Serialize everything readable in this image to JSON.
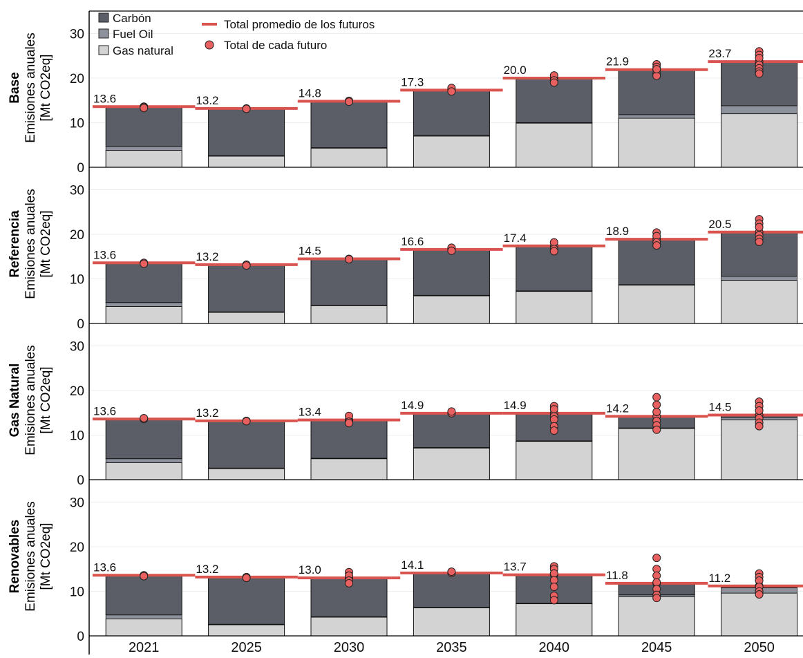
{
  "chart_data": {
    "type": "bar",
    "stacked": true,
    "categories": [
      "2021",
      "2025",
      "2030",
      "2035",
      "2040",
      "2045",
      "2050"
    ],
    "ylim": [
      0,
      35
    ],
    "yticks": [
      0,
      10,
      20,
      30
    ],
    "ylabel_line1": "Emisiones anuales",
    "ylabel_line2": "[Mt CO2eq]",
    "legend": {
      "position": "top-left",
      "items": [
        {
          "label": "Carbón",
          "kind": "box",
          "color": "#5b5e66"
        },
        {
          "label": "Fuel Oil",
          "kind": "box",
          "color": "#8d919b"
        },
        {
          "label": "Gas natural",
          "kind": "box",
          "color": "#d3d3d3"
        },
        {
          "label": "Total promedio de los futuros",
          "kind": "line",
          "color": "#d9534f"
        },
        {
          "label": "Total de cada futuro",
          "kind": "dot",
          "color": "#e8605f"
        }
      ]
    },
    "colors": {
      "carbon": "#5b5e66",
      "fuel_oil": "#8d919b",
      "gas_natural": "#d3d3d3",
      "mean_line": "#d9534f",
      "future_dot": "#e8605f",
      "bar_edge": "#111111"
    },
    "panels": [
      {
        "name": "Base",
        "gas_natural": [
          3.8,
          2.5,
          4.3,
          7.0,
          9.9,
          11.0,
          12.0
        ],
        "fuel_oil": [
          0.9,
          0.1,
          0.1,
          0.1,
          0.1,
          0.8,
          1.8
        ],
        "carbon": [
          8.9,
          10.6,
          10.4,
          10.2,
          10.0,
          10.1,
          9.9
        ],
        "mean_total": [
          13.6,
          13.2,
          14.8,
          17.3,
          20.0,
          21.9,
          23.7
        ],
        "mean_labels": [
          "13.6",
          "13.2",
          "14.8",
          "17.3",
          "20.0",
          "21.9",
          "23.7"
        ],
        "futures": [
          [
            13.6,
            13.5,
            13.3
          ],
          [
            13.2,
            13.1
          ],
          [
            14.8,
            14.9,
            14.7
          ],
          [
            17.3,
            17.8,
            17.0
          ],
          [
            20.0,
            20.6,
            19.5,
            19.0
          ],
          [
            21.9,
            23.1,
            22.5,
            21.0,
            20.5,
            22.0
          ],
          [
            23.7,
            26.0,
            25.2,
            24.5,
            23.0,
            22.2,
            21.5,
            21.0
          ]
        ]
      },
      {
        "name": "Referencia",
        "gas_natural": [
          3.8,
          2.5,
          4.0,
          6.2,
          7.2,
          8.6,
          9.7
        ],
        "fuel_oil": [
          0.9,
          0.1,
          0.1,
          0.1,
          0.1,
          0.1,
          0.9
        ],
        "carbon": [
          8.9,
          10.6,
          10.4,
          10.3,
          10.1,
          10.2,
          9.9
        ],
        "mean_total": [
          13.6,
          13.2,
          14.5,
          16.6,
          17.4,
          18.9,
          20.5
        ],
        "mean_labels": [
          "13.6",
          "13.2",
          "14.5",
          "16.6",
          "17.4",
          "18.9",
          "20.5"
        ],
        "futures": [
          [
            13.6,
            13.4
          ],
          [
            13.2,
            13.0
          ],
          [
            14.5,
            14.4
          ],
          [
            16.6,
            17.0,
            16.3
          ],
          [
            17.4,
            18.2,
            16.7,
            16.2
          ],
          [
            18.9,
            20.4,
            19.6,
            18.2,
            17.5
          ],
          [
            20.5,
            23.4,
            22.4,
            21.6,
            19.8,
            19.0,
            18.3
          ]
        ]
      },
      {
        "name": "Gas Natural",
        "gas_natural": [
          3.8,
          2.5,
          4.7,
          7.1,
          8.6,
          11.5,
          13.4
        ],
        "fuel_oil": [
          0.9,
          0.1,
          0.1,
          0.1,
          0.1,
          0.1,
          0.6
        ],
        "carbon": [
          8.9,
          10.6,
          8.6,
          7.7,
          6.2,
          2.6,
          0.5
        ],
        "mean_total": [
          13.6,
          13.2,
          13.4,
          14.9,
          14.9,
          14.2,
          14.5
        ],
        "mean_labels": [
          "13.6",
          "13.2",
          "13.4",
          "14.9",
          "14.9",
          "14.2",
          "14.5"
        ],
        "futures": [
          [
            13.6,
            13.8
          ],
          [
            13.2,
            13.1
          ],
          [
            13.4,
            14.3,
            13.0,
            12.7
          ],
          [
            14.9,
            15.3
          ],
          [
            14.9,
            16.5,
            15.8,
            14.2,
            13.5,
            12.0,
            11.0
          ],
          [
            14.2,
            18.5,
            16.8,
            15.2,
            13.2,
            12.2,
            11.2
          ],
          [
            14.5,
            17.5,
            16.5,
            15.5,
            13.8,
            12.8,
            12.0
          ]
        ]
      },
      {
        "name": "Renovables",
        "gas_natural": [
          3.8,
          2.5,
          4.2,
          6.3,
          7.2,
          8.8,
          9.6
        ],
        "fuel_oil": [
          0.9,
          0.1,
          0.1,
          0.1,
          0.1,
          0.4,
          1.2
        ],
        "carbon": [
          8.9,
          10.6,
          8.7,
          7.7,
          6.4,
          2.6,
          0.4
        ],
        "mean_total": [
          13.6,
          13.2,
          13.0,
          14.1,
          13.7,
          11.8,
          11.2
        ],
        "mean_labels": [
          "13.6",
          "13.2",
          "13.0",
          "14.1",
          "13.7",
          "11.8",
          "11.2"
        ],
        "futures": [
          [
            13.6,
            13.4
          ],
          [
            13.2,
            13.0
          ],
          [
            13.0,
            14.3,
            13.5,
            12.4,
            11.8
          ],
          [
            14.1,
            14.4
          ],
          [
            13.7,
            15.6,
            15.0,
            14.0,
            12.5,
            11.0,
            9.0,
            8.0
          ],
          [
            11.8,
            17.5,
            15.0,
            13.5,
            12.0,
            10.5,
            9.2,
            8.5
          ],
          [
            11.2,
            14.0,
            13.2,
            12.4,
            11.0,
            10.0,
            9.3
          ]
        ]
      }
    ]
  }
}
